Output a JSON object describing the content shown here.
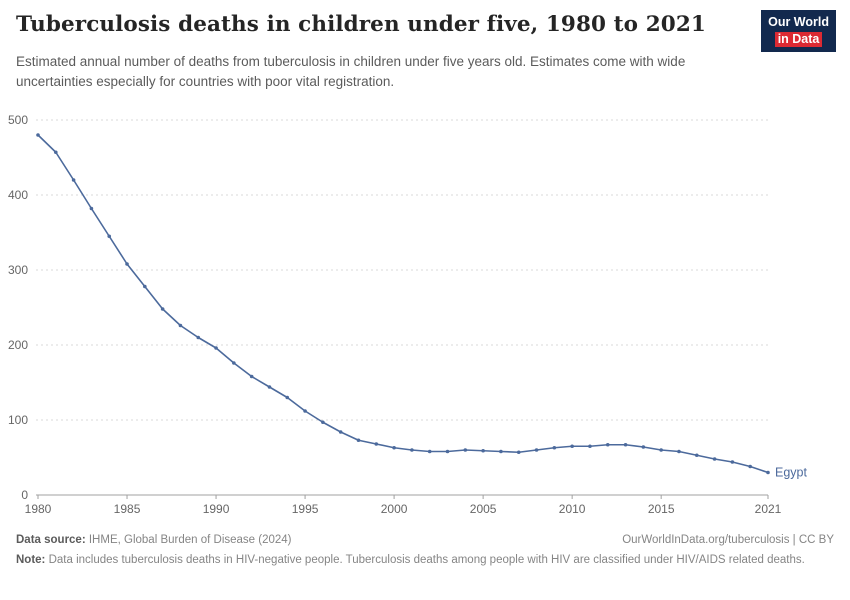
{
  "header": {
    "title": "Tuberculosis deaths in children under five, 1980 to 2021",
    "subtitle": "Estimated annual number of deaths from tuberculosis in children under five years old. Estimates come with wide uncertainties especially for countries with poor vital registration.",
    "logo": {
      "line1": "Our World",
      "line2": "in Data"
    }
  },
  "chart_data": {
    "type": "line",
    "title": "Tuberculosis deaths in children under five, 1980 to 2021",
    "xlabel": "",
    "ylabel": "",
    "xlim": [
      1980,
      2021
    ],
    "ylim": [
      0,
      500
    ],
    "x_ticks": [
      1980,
      1985,
      1990,
      1995,
      2000,
      2005,
      2010,
      2015,
      2021
    ],
    "y_ticks": [
      0,
      100,
      200,
      300,
      400,
      500
    ],
    "grid": "horizontal-dotted",
    "legend_position": "end-of-line-label",
    "series": [
      {
        "name": "Egypt",
        "color": "#4c6a9c",
        "x": [
          1980,
          1981,
          1982,
          1983,
          1984,
          1985,
          1986,
          1987,
          1988,
          1989,
          1990,
          1991,
          1992,
          1993,
          1994,
          1995,
          1996,
          1997,
          1998,
          1999,
          2000,
          2001,
          2002,
          2003,
          2004,
          2005,
          2006,
          2007,
          2008,
          2009,
          2010,
          2011,
          2012,
          2013,
          2014,
          2015,
          2016,
          2017,
          2018,
          2019,
          2020,
          2021
        ],
        "values": [
          480,
          457,
          420,
          382,
          345,
          308,
          278,
          248,
          226,
          210,
          196,
          176,
          158,
          144,
          130,
          112,
          97,
          84,
          73,
          68,
          63,
          60,
          58,
          58,
          60,
          59,
          58,
          57,
          60,
          63,
          65,
          65,
          67,
          67,
          64,
          60,
          58,
          53,
          48,
          44,
          38,
          30
        ]
      }
    ]
  },
  "footer": {
    "datasource_label": "Data source:",
    "datasource_value": " IHME, Global Burden of Disease (2024)",
    "right_text": "OurWorldInData.org/tuberculosis | CC BY",
    "note_label": "Note:",
    "note_value": " Data includes tuberculosis deaths in HIV-negative people. Tuberculosis deaths among people with HIV are classified under HIV/AIDS related deaths."
  },
  "colors": {
    "line": "#4c6a9c",
    "grid": "#d8d8d8",
    "axis": "#a0a0a0",
    "tick_label": "#666666",
    "logo_bg": "#12294e",
    "logo_red": "#dc2a33"
  }
}
